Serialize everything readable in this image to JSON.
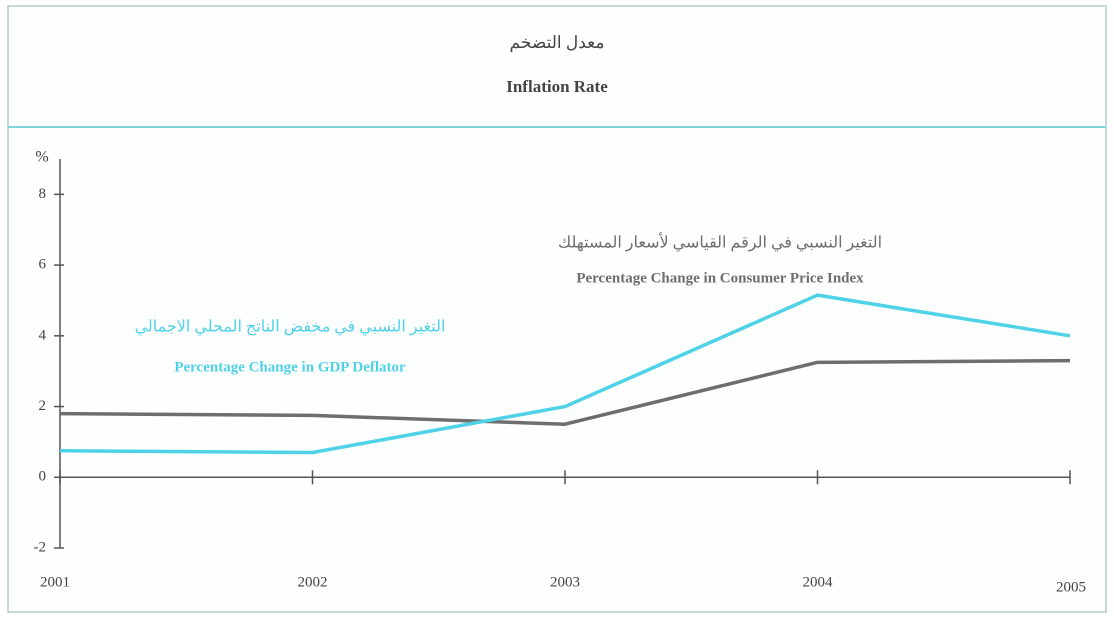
{
  "chart_data": {
    "type": "line",
    "title_ar": "معدل التضخم",
    "title": "Inflation Rate",
    "y_label": "%",
    "x": [
      2001,
      2002,
      2003,
      2004,
      2005
    ],
    "xlim": [
      2001,
      2005
    ],
    "xticks": [
      2001,
      2002,
      2003,
      2004,
      2005
    ],
    "ylim": [
      -2,
      9
    ],
    "yticks": [
      -2,
      0,
      2,
      4,
      6,
      8
    ],
    "grid": false,
    "series": [
      {
        "name": "Percentage Change in Consumer Price Index",
        "name_ar": "التغير النسبي في الرقم القياسي لأسعار المستهلك",
        "color": "#6e6e6e",
        "values": [
          1.8,
          1.75,
          1.5,
          3.25,
          3.3
        ]
      },
      {
        "name": "Percentage Change in GDP Deflator",
        "name_ar": "التغير النسبي في مخفض الناتج المحلي الاجمالي",
        "color": "#4fd2e8",
        "values": [
          0.75,
          0.7,
          2.0,
          5.15,
          4.0
        ]
      }
    ]
  }
}
